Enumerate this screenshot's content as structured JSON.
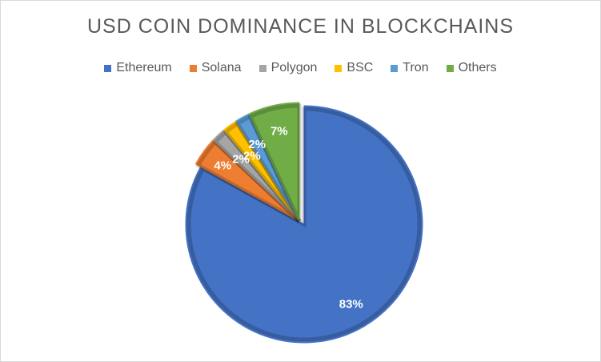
{
  "chart_data": {
    "type": "pie",
    "title": "USD COIN DOMINANCE IN BLOCKCHAINS",
    "legend_position": "top",
    "categories": [
      "Ethereum",
      "Solana",
      "Polygon",
      "BSC",
      "Tron",
      "Others"
    ],
    "values": [
      83,
      4,
      2,
      2,
      2,
      7
    ],
    "labels": [
      "83%",
      "4%",
      "2%",
      "2%",
      "2%",
      "7%"
    ],
    "colors": [
      "#4472c4",
      "#ed7d31",
      "#a5a5a5",
      "#ffc000",
      "#5b9bd5",
      "#70ad47"
    ],
    "exploded": true
  }
}
